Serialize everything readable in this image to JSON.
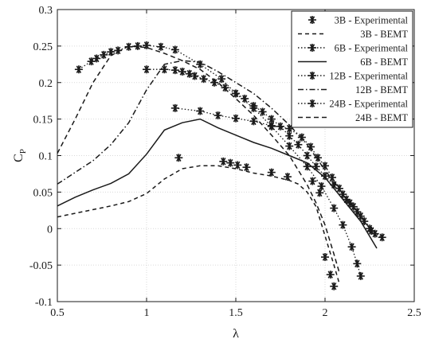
{
  "chart_data": {
    "type": "line",
    "title": "",
    "xlabel": "λ",
    "ylabel": "C",
    "ylabel_subscript": "P",
    "xlim": [
      0.5,
      2.5
    ],
    "ylim": [
      -0.1,
      0.3
    ],
    "xticks": [
      0.5,
      1,
      1.5,
      2,
      2.5
    ],
    "xtick_labels": [
      "0.5",
      "1",
      "1.5",
      "2",
      "2.5"
    ],
    "yticks": [
      -0.1,
      -0.05,
      0,
      0.05,
      0.1,
      0.15,
      0.2,
      0.25,
      0.3
    ],
    "ytick_labels": [
      "-0.1",
      "-0.05",
      "0",
      "0.05",
      "0.1",
      "0.15",
      "0.2",
      "0.25",
      "0.3"
    ],
    "grid": true,
    "legend_position": "top-right",
    "line_color": "#1a1a1a",
    "series": [
      {
        "name": "3B - Experimental",
        "style": "markers",
        "marker": "asterisk",
        "points": [
          [
            1.18,
            0.097
          ],
          [
            1.43,
            0.092
          ],
          [
            1.47,
            0.09
          ],
          [
            1.51,
            0.087
          ],
          [
            1.56,
            0.084
          ],
          [
            1.7,
            0.077
          ],
          [
            1.79,
            0.071
          ],
          [
            1.93,
            0.065
          ],
          [
            1.97,
            0.049
          ],
          [
            2.0,
            -0.039
          ],
          [
            2.03,
            -0.063
          ],
          [
            2.05,
            -0.079
          ]
        ]
      },
      {
        "name": "3B - BEMT",
        "style": "dashed",
        "points": [
          [
            0.5,
            0.016
          ],
          [
            0.6,
            0.021
          ],
          [
            0.7,
            0.026
          ],
          [
            0.8,
            0.031
          ],
          [
            0.9,
            0.037
          ],
          [
            1.0,
            0.048
          ],
          [
            1.1,
            0.068
          ],
          [
            1.2,
            0.082
          ],
          [
            1.3,
            0.086
          ],
          [
            1.4,
            0.086
          ],
          [
            1.5,
            0.082
          ],
          [
            1.6,
            0.076
          ],
          [
            1.7,
            0.072
          ],
          [
            1.8,
            0.066
          ],
          [
            1.85,
            0.061
          ],
          [
            1.9,
            0.05
          ],
          [
            1.95,
            0.03
          ],
          [
            2.0,
            -0.01
          ],
          [
            2.05,
            -0.05
          ],
          [
            2.08,
            -0.075
          ]
        ]
      },
      {
        "name": "6B - Experimental",
        "style": "markers-line",
        "marker": "asterisk",
        "points": [
          [
            1.16,
            0.165
          ],
          [
            1.3,
            0.161
          ],
          [
            1.4,
            0.155
          ],
          [
            1.5,
            0.151
          ],
          [
            1.6,
            0.147
          ],
          [
            1.7,
            0.141
          ],
          [
            1.8,
            0.137
          ],
          [
            1.87,
            0.125
          ],
          [
            1.92,
            0.112
          ],
          [
            1.96,
            0.097
          ],
          [
            2.0,
            0.086
          ],
          [
            2.04,
            0.07
          ],
          [
            2.08,
            0.055
          ],
          [
            2.12,
            0.04
          ],
          [
            2.16,
            0.03
          ],
          [
            2.2,
            0.017
          ],
          [
            2.25,
            0.0
          ],
          [
            2.28,
            -0.007
          ],
          [
            2.32,
            -0.012
          ]
        ]
      },
      {
        "name": "6B - BEMT",
        "style": "solid",
        "points": [
          [
            0.5,
            0.031
          ],
          [
            0.6,
            0.043
          ],
          [
            0.7,
            0.053
          ],
          [
            0.8,
            0.062
          ],
          [
            0.9,
            0.075
          ],
          [
            1.0,
            0.102
          ],
          [
            1.1,
            0.135
          ],
          [
            1.2,
            0.145
          ],
          [
            1.3,
            0.15
          ],
          [
            1.4,
            0.138
          ],
          [
            1.5,
            0.128
          ],
          [
            1.6,
            0.118
          ],
          [
            1.7,
            0.11
          ],
          [
            1.8,
            0.1
          ],
          [
            1.9,
            0.09
          ],
          [
            2.0,
            0.07
          ],
          [
            2.1,
            0.04
          ],
          [
            2.2,
            0.01
          ],
          [
            2.29,
            -0.027
          ]
        ]
      },
      {
        "name": "12B - Experimental",
        "style": "markers-line",
        "marker": "asterisk",
        "points": [
          [
            1.0,
            0.218
          ],
          [
            1.1,
            0.218
          ],
          [
            1.16,
            0.217
          ],
          [
            1.2,
            0.215
          ],
          [
            1.24,
            0.212
          ],
          [
            1.27,
            0.209
          ],
          [
            1.32,
            0.205
          ],
          [
            1.38,
            0.2
          ],
          [
            1.44,
            0.193
          ],
          [
            1.5,
            0.185
          ],
          [
            1.55,
            0.178
          ],
          [
            1.6,
            0.168
          ],
          [
            1.65,
            0.16
          ],
          [
            1.7,
            0.15
          ],
          [
            1.75,
            0.14
          ],
          [
            1.8,
            0.127
          ],
          [
            1.85,
            0.115
          ],
          [
            1.9,
            0.1
          ],
          [
            1.95,
            0.085
          ],
          [
            2.0,
            0.072
          ],
          [
            2.05,
            0.06
          ],
          [
            2.1,
            0.047
          ],
          [
            2.14,
            0.035
          ],
          [
            2.18,
            0.023
          ],
          [
            2.22,
            0.01
          ],
          [
            2.26,
            -0.003
          ]
        ]
      },
      {
        "name": "12B - BEMT",
        "style": "dashdot",
        "points": [
          [
            0.5,
            0.061
          ],
          [
            0.6,
            0.077
          ],
          [
            0.7,
            0.093
          ],
          [
            0.8,
            0.115
          ],
          [
            0.9,
            0.145
          ],
          [
            1.0,
            0.19
          ],
          [
            1.1,
            0.225
          ],
          [
            1.2,
            0.23
          ],
          [
            1.3,
            0.228
          ],
          [
            1.4,
            0.215
          ],
          [
            1.5,
            0.2
          ],
          [
            1.6,
            0.185
          ],
          [
            1.7,
            0.165
          ],
          [
            1.8,
            0.142
          ],
          [
            1.9,
            0.115
          ],
          [
            2.0,
            0.08
          ],
          [
            2.1,
            0.048
          ],
          [
            2.2,
            0.018
          ],
          [
            2.27,
            -0.005
          ]
        ]
      },
      {
        "name": "24B - Experimental",
        "style": "markers-line",
        "marker": "asterisk",
        "points": [
          [
            0.62,
            0.218
          ],
          [
            0.69,
            0.229
          ],
          [
            0.72,
            0.233
          ],
          [
            0.76,
            0.238
          ],
          [
            0.8,
            0.242
          ],
          [
            0.84,
            0.244
          ],
          [
            0.9,
            0.249
          ],
          [
            0.95,
            0.25
          ],
          [
            1.0,
            0.251
          ],
          [
            1.08,
            0.249
          ],
          [
            1.16,
            0.245
          ],
          [
            1.3,
            0.225
          ],
          [
            1.42,
            0.205
          ],
          [
            1.5,
            0.185
          ],
          [
            1.6,
            0.165
          ],
          [
            1.7,
            0.14
          ],
          [
            1.8,
            0.113
          ],
          [
            1.9,
            0.085
          ],
          [
            1.98,
            0.058
          ],
          [
            2.05,
            0.028
          ],
          [
            2.1,
            0.005
          ],
          [
            2.15,
            -0.025
          ],
          [
            2.18,
            -0.048
          ],
          [
            2.2,
            -0.065
          ]
        ]
      },
      {
        "name": "24B - BEMT",
        "style": "dashed-long",
        "points": [
          [
            0.5,
            0.103
          ],
          [
            0.6,
            0.15
          ],
          [
            0.7,
            0.2
          ],
          [
            0.8,
            0.237
          ],
          [
            0.9,
            0.25
          ],
          [
            1.0,
            0.248
          ],
          [
            1.1,
            0.24
          ],
          [
            1.2,
            0.23
          ],
          [
            1.3,
            0.218
          ],
          [
            1.4,
            0.2
          ],
          [
            1.5,
            0.178
          ],
          [
            1.6,
            0.155
          ],
          [
            1.7,
            0.128
          ],
          [
            1.8,
            0.1
          ],
          [
            1.9,
            0.06
          ],
          [
            1.95,
            0.035
          ],
          [
            2.0,
            0.005
          ],
          [
            2.05,
            -0.035
          ],
          [
            2.08,
            -0.06
          ]
        ]
      }
    ]
  }
}
